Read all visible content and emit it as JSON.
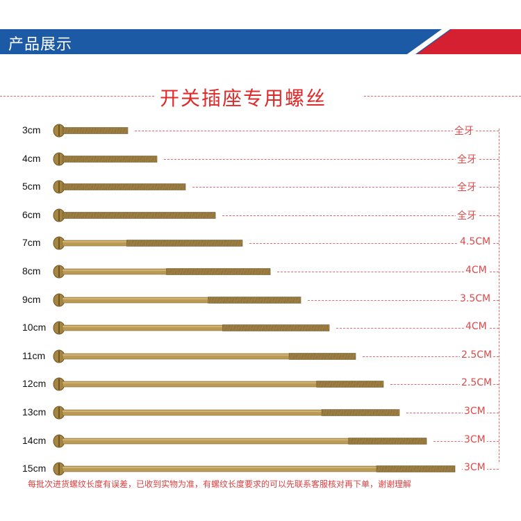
{
  "banner": {
    "title": "产品展示"
  },
  "heading": "开关插座专用螺丝",
  "rows": [
    {
      "size": "3cm",
      "thread": "全牙",
      "length_cm": 3,
      "thread_cm": 3
    },
    {
      "size": "4cm",
      "thread": "全牙",
      "length_cm": 4,
      "thread_cm": 4
    },
    {
      "size": "5cm",
      "thread": "全牙",
      "length_cm": 5,
      "thread_cm": 5
    },
    {
      "size": "6cm",
      "thread": "全牙",
      "length_cm": 6,
      "thread_cm": 6
    },
    {
      "size": "7cm",
      "thread": "4.5CM",
      "length_cm": 7,
      "thread_cm": 4.5
    },
    {
      "size": "8cm",
      "thread": "4CM",
      "length_cm": 8,
      "thread_cm": 4
    },
    {
      "size": "9cm",
      "thread": "3.5CM",
      "length_cm": 9,
      "thread_cm": 3.5
    },
    {
      "size": "10cm",
      "thread": "4CM",
      "length_cm": 10,
      "thread_cm": 4
    },
    {
      "size": "11cm",
      "thread": "2.5CM",
      "length_cm": 11,
      "thread_cm": 2.5
    },
    {
      "size": "12cm",
      "thread": "2.5CM",
      "length_cm": 12,
      "thread_cm": 2.5
    },
    {
      "size": "13cm",
      "thread": "3CM",
      "length_cm": 13,
      "thread_cm": 3
    },
    {
      "size": "14cm",
      "thread": "3CM",
      "length_cm": 14,
      "thread_cm": 3
    },
    {
      "size": "15cm",
      "thread": "3CM",
      "length_cm": 15,
      "thread_cm": 3
    }
  ],
  "footer_note": "每批次进货螺纹长度有误差，已收到实物为准，有螺纹长度要求的可以先联系客服核对再下单，谢谢理解",
  "colors": {
    "banner_blue": "#1c5aa6",
    "accent_red": "#e02a2a",
    "screw_brass": "#b8944a"
  }
}
